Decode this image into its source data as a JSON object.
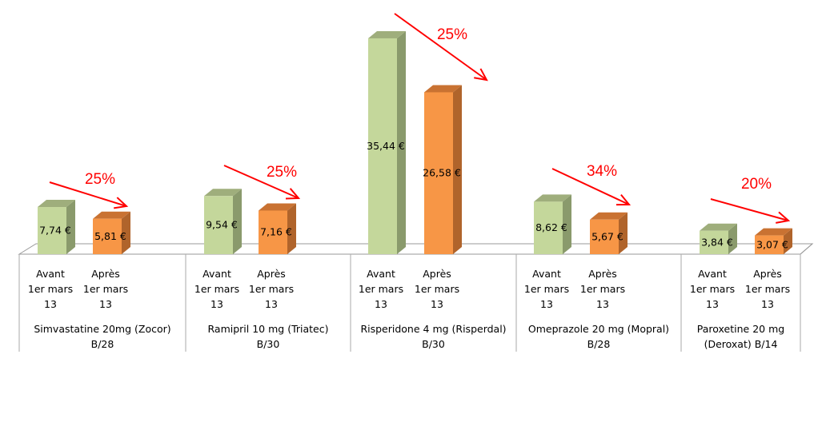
{
  "chart_data": {
    "type": "bar",
    "style": "3d-clustered-column",
    "categories": [
      [
        "Simvastatine 20mg (Zocor)",
        "B/28"
      ],
      [
        "Ramipril 10 mg (Triatec)",
        "B/30"
      ],
      [
        "Risperidone 4 mg (Risperdal)",
        "B/30"
      ],
      [
        "Omeprazole 20 mg (Mopral)",
        "B/28"
      ],
      [
        "Paroxetine 20 mg",
        "(Deroxat) B/14"
      ]
    ],
    "sub_categories": [
      [
        "Avant",
        "1er mars",
        "13"
      ],
      [
        "Après",
        "1er mars",
        "13"
      ]
    ],
    "series": [
      {
        "values": [
          7.74,
          9.54,
          35.44,
          8.62,
          3.84
        ],
        "labels": [
          "7,74 €",
          "9,54 €",
          "35,44 €",
          "8,62 €",
          "3,84 €"
        ],
        "color": "#c4d79b",
        "side_color": "#8a9a6c",
        "top_color": "#9fae7c"
      },
      {
        "values": [
          5.81,
          7.16,
          26.58,
          5.67,
          3.07
        ],
        "labels": [
          "5,81 €",
          "7,16 €",
          "26,58 €",
          "5,67 €",
          "3,07 €"
        ],
        "color": "#f79646",
        "side_color": "#b0642b",
        "top_color": "#c97232"
      }
    ],
    "annotations": [
      "25%",
      "25%",
      "25%",
      "34%",
      "20%"
    ],
    "annotation_color": "#ff0000",
    "ylim": [
      0,
      36
    ],
    "grid": false,
    "legend": "none"
  }
}
